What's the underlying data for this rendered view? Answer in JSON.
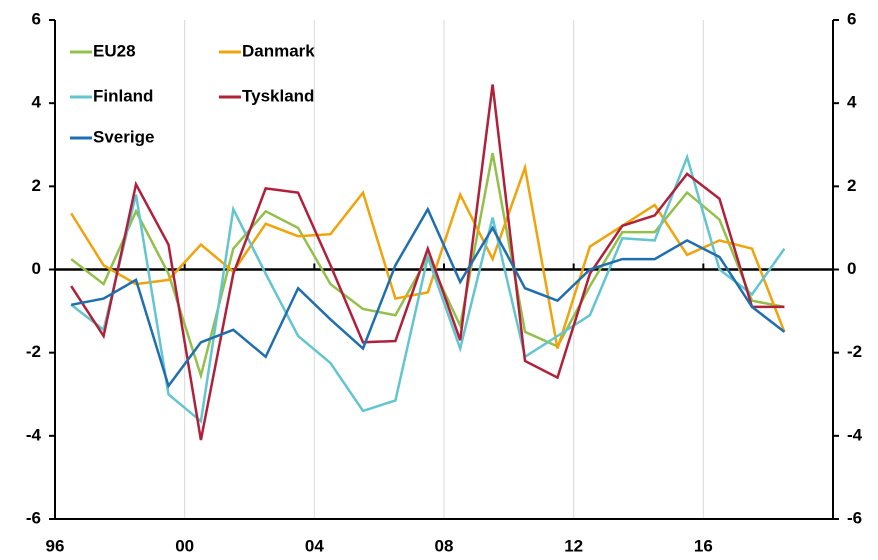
{
  "chart_data": {
    "type": "line",
    "categories": [
      "96",
      null,
      null,
      null,
      "00",
      null,
      null,
      null,
      "04",
      null,
      null,
      null,
      "08",
      null,
      null,
      null,
      "12",
      null,
      null,
      null,
      "16",
      null,
      null,
      null
    ],
    "series": [
      {
        "name": "EU28",
        "color": "#92c04a",
        "values": [
          0.25,
          -0.35,
          1.4,
          -0.1,
          -2.55,
          0.5,
          1.4,
          1.0,
          -0.35,
          -0.95,
          -1.1,
          0.3,
          -1.35,
          2.8,
          -1.5,
          -1.85,
          -0.4,
          0.9,
          0.9,
          1.85,
          1.2,
          -0.75,
          -0.9,
          null
        ]
      },
      {
        "name": "Danmark",
        "color": "#f0a30a",
        "values": [
          1.35,
          0.1,
          -0.35,
          -0.25,
          0.6,
          -0.05,
          1.1,
          0.8,
          0.85,
          1.85,
          -0.7,
          -0.55,
          1.8,
          0.25,
          2.45,
          -1.9,
          0.55,
          1.05,
          1.55,
          0.35,
          0.7,
          0.5,
          -1.5,
          null
        ]
      },
      {
        "name": "Finland",
        "color": "#63c5d0",
        "values": [
          -0.85,
          -1.45,
          1.8,
          -3.0,
          -3.65,
          1.45,
          -0.1,
          -1.6,
          -2.25,
          -3.4,
          -3.15,
          0.3,
          -1.9,
          1.25,
          -2.1,
          -1.6,
          -1.1,
          0.75,
          0.7,
          2.7,
          0.0,
          -0.6,
          0.5,
          null
        ]
      },
      {
        "name": "Tyskland",
        "color": "#b0203a",
        "values": [
          -0.4,
          -1.6,
          2.05,
          0.6,
          -4.1,
          -0.1,
          1.95,
          1.85,
          0.1,
          -1.75,
          -1.72,
          0.5,
          -1.7,
          4.45,
          -2.2,
          -2.6,
          -0.1,
          1.05,
          1.3,
          2.3,
          1.7,
          -0.9,
          -0.9,
          null
        ]
      },
      {
        "name": "Sverige",
        "color": "#1f6fb0",
        "values": [
          -0.85,
          -0.7,
          -0.25,
          -2.8,
          -1.75,
          -1.45,
          -2.1,
          -0.45,
          -1.2,
          -1.9,
          0.1,
          1.45,
          -0.3,
          1.0,
          -0.45,
          -0.75,
          0.0,
          0.25,
          0.25,
          0.7,
          0.3,
          -0.9,
          -1.5,
          null
        ]
      }
    ],
    "ylim": [
      -6,
      6
    ],
    "yticks": [
      -6,
      -4,
      -2,
      0,
      2,
      4,
      6
    ],
    "y2lim": [
      -6,
      6
    ],
    "y2ticks": [
      -6,
      -4,
      -2,
      0,
      2,
      4,
      6
    ],
    "grid": true
  }
}
